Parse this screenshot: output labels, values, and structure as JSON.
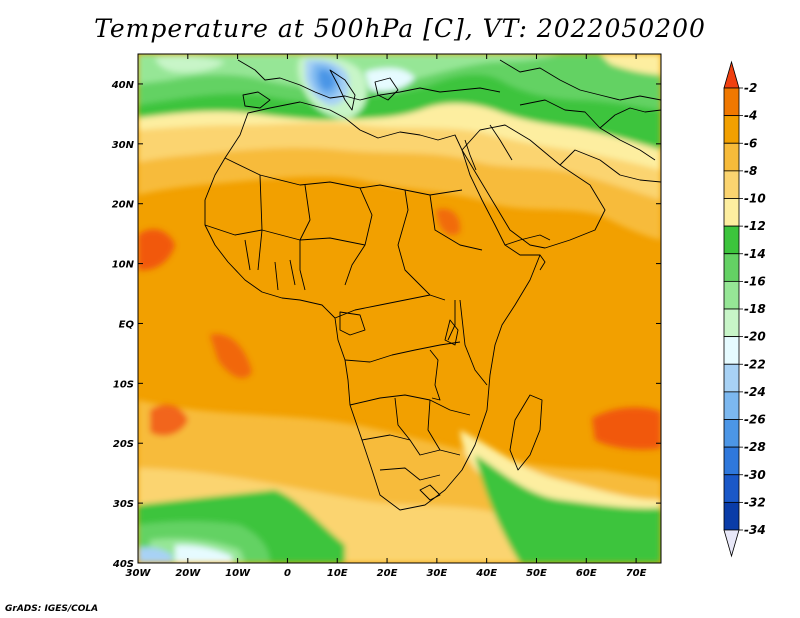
{
  "title": "Temperature at 500hPa [C], VT: 2022050200",
  "credit": "GrADS: IGES/COLA",
  "map": {
    "lon_range": [
      -30,
      75
    ],
    "lat_range": [
      -40,
      45
    ],
    "lon_ticks": [
      {
        "value": -30,
        "label": "30W"
      },
      {
        "value": -20,
        "label": "20W"
      },
      {
        "value": -10,
        "label": "10W"
      },
      {
        "value": 0,
        "label": "0"
      },
      {
        "value": 10,
        "label": "10E"
      },
      {
        "value": 20,
        "label": "20E"
      },
      {
        "value": 30,
        "label": "30E"
      },
      {
        "value": 40,
        "label": "40E"
      },
      {
        "value": 50,
        "label": "50E"
      },
      {
        "value": 60,
        "label": "60E"
      },
      {
        "value": 70,
        "label": "70E"
      }
    ],
    "lat_ticks": [
      {
        "value": 40,
        "label": "40N"
      },
      {
        "value": 30,
        "label": "30N"
      },
      {
        "value": 20,
        "label": "20N"
      },
      {
        "value": 10,
        "label": "10N"
      },
      {
        "value": 0,
        "label": "EQ"
      },
      {
        "value": -10,
        "label": "10S"
      },
      {
        "value": -20,
        "label": "20S"
      },
      {
        "value": -30,
        "label": "30S"
      },
      {
        "value": -40,
        "label": "40S"
      }
    ]
  },
  "colorbar": {
    "levels": [
      "-2",
      "-4",
      "-6",
      "-8",
      "-10",
      "-12",
      "-14",
      "-16",
      "-18",
      "-20",
      "-22",
      "-24",
      "-26",
      "-28",
      "-30",
      "-32",
      "-34"
    ],
    "colors": [
      "#f04010",
      "#f07800",
      "#f2a000",
      "#f7bb3a",
      "#fbd470",
      "#fdeea0",
      "#3cc43c",
      "#64d264",
      "#96e696",
      "#c8f5c8",
      "#e6fbff",
      "#a8d2f5",
      "#7cb8f0",
      "#4c96e6",
      "#2f78dc",
      "#1a58c8",
      "#0a3ca8",
      "#0a1e78"
    ]
  }
}
